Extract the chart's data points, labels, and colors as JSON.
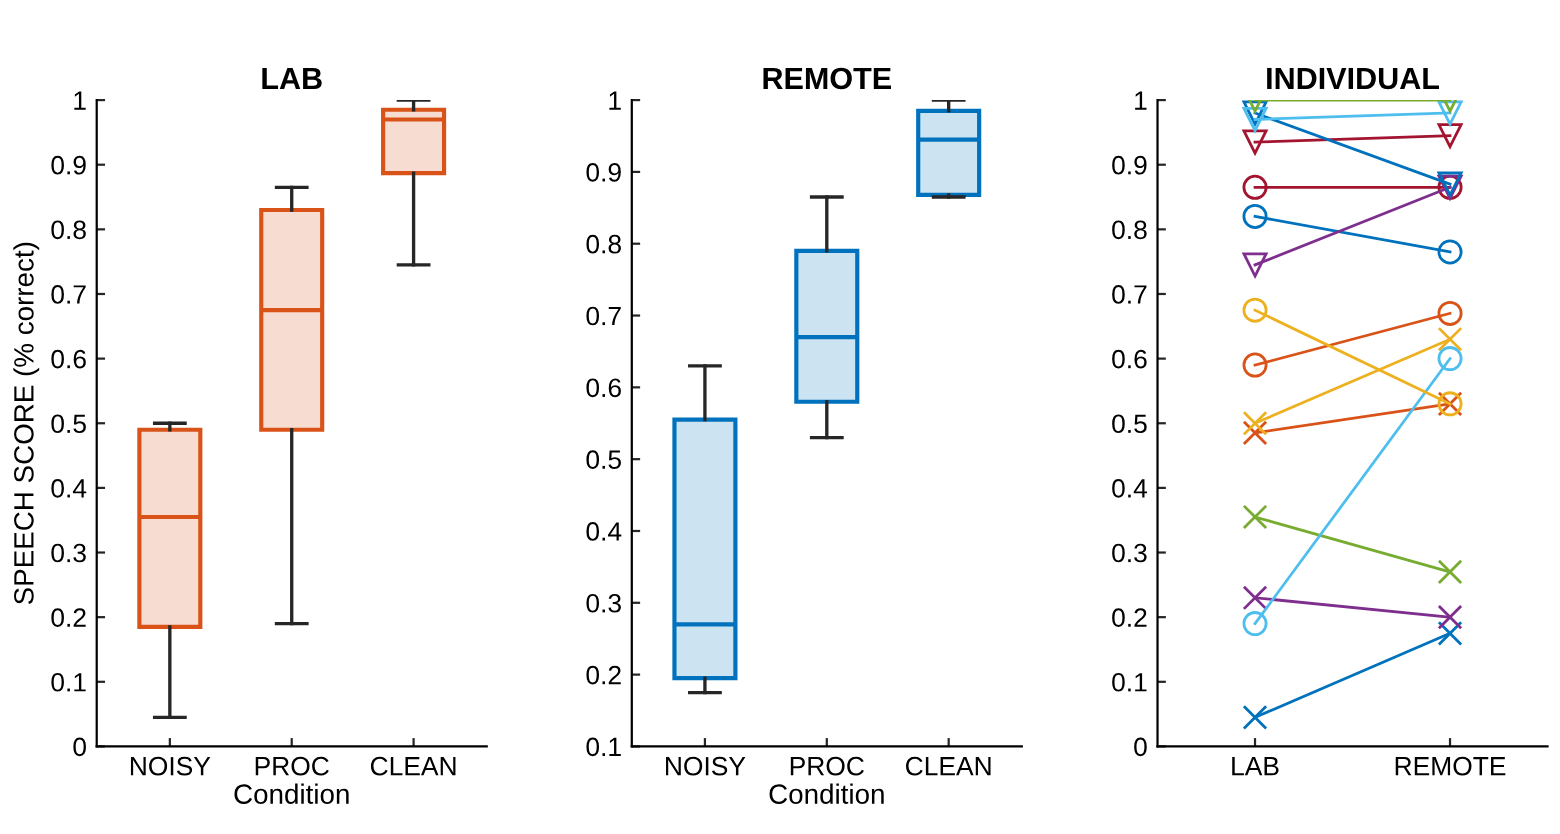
{
  "chart_data": [
    {
      "type": "box",
      "title": "LAB",
      "xlabel": "Condition",
      "ylabel": "SPEECH SCORE (% correct)",
      "categories": [
        "NOISY",
        "PROC",
        "CLEAN"
      ],
      "color": "#d95319",
      "ylim": [
        0,
        1
      ],
      "yticks": [
        0,
        0.1,
        0.2,
        0.3,
        0.4,
        0.5,
        0.6,
        0.7,
        0.8,
        0.9,
        1
      ],
      "boxes": [
        {
          "low": 0.045,
          "q1": 0.185,
          "median": 0.355,
          "q3": 0.49,
          "high": 0.5
        },
        {
          "low": 0.19,
          "q1": 0.49,
          "median": 0.675,
          "q3": 0.83,
          "high": 0.865
        },
        {
          "low": 0.745,
          "q1": 0.887,
          "median": 0.97,
          "q3": 0.985,
          "high": 1.0
        }
      ]
    },
    {
      "type": "box",
      "title": "REMOTE",
      "xlabel": "Condition",
      "categories": [
        "NOISY",
        "PROC",
        "CLEAN"
      ],
      "color": "#0072bd",
      "ylim": [
        0.1,
        1
      ],
      "yticks": [
        0.1,
        0.2,
        0.3,
        0.4,
        0.5,
        0.6,
        0.7,
        0.8,
        0.9,
        1
      ],
      "boxes": [
        {
          "low": 0.175,
          "q1": 0.195,
          "median": 0.27,
          "q3": 0.555,
          "high": 0.63
        },
        {
          "low": 0.53,
          "q1": 0.58,
          "median": 0.67,
          "q3": 0.79,
          "high": 0.865
        },
        {
          "low": 0.865,
          "q1": 0.868,
          "median": 0.945,
          "q3": 0.985,
          "high": 1.0
        }
      ]
    },
    {
      "type": "line",
      "title": "INDIVIDUAL",
      "categories": [
        "LAB",
        "REMOTE"
      ],
      "ylim": [
        0,
        1
      ],
      "yticks": [
        0,
        0.1,
        0.2,
        0.3,
        0.4,
        0.5,
        0.6,
        0.7,
        0.8,
        0.9,
        1
      ],
      "series": [
        {
          "color": "#77ac30",
          "marker": "triangle",
          "values": [
            1.0,
            1.0
          ]
        },
        {
          "color": "#4dbeee",
          "marker": "triangle",
          "values": [
            0.97,
            0.98
          ]
        },
        {
          "color": "#0072bd",
          "marker": "triangle",
          "values": [
            0.98,
            0.87
          ]
        },
        {
          "color": "#a2142f",
          "marker": "triangle",
          "values": [
            0.935,
            0.945
          ]
        },
        {
          "color": "#7e2f8e",
          "marker": "triangle",
          "values": [
            0.745,
            0.865
          ]
        },
        {
          "color": "#a2142f",
          "marker": "circle",
          "values": [
            0.865,
            0.865
          ]
        },
        {
          "color": "#0072bd",
          "marker": "circle",
          "values": [
            0.82,
            0.765
          ]
        },
        {
          "color": "#edb120",
          "marker": "circle",
          "values": [
            0.675,
            0.53
          ]
        },
        {
          "color": "#d95319",
          "marker": "circle",
          "values": [
            0.59,
            0.67
          ]
        },
        {
          "color": "#4dbeee",
          "marker": "circle",
          "values": [
            0.19,
            0.6
          ]
        },
        {
          "color": "#edb120",
          "marker": "cross",
          "values": [
            0.5,
            0.63
          ]
        },
        {
          "color": "#d95319",
          "marker": "cross",
          "values": [
            0.485,
            0.53
          ]
        },
        {
          "color": "#77ac30",
          "marker": "cross",
          "values": [
            0.355,
            0.27
          ]
        },
        {
          "color": "#7e2f8e",
          "marker": "cross",
          "values": [
            0.23,
            0.2
          ]
        },
        {
          "color": "#0072bd",
          "marker": "cross",
          "values": [
            0.045,
            0.175
          ]
        }
      ]
    }
  ]
}
